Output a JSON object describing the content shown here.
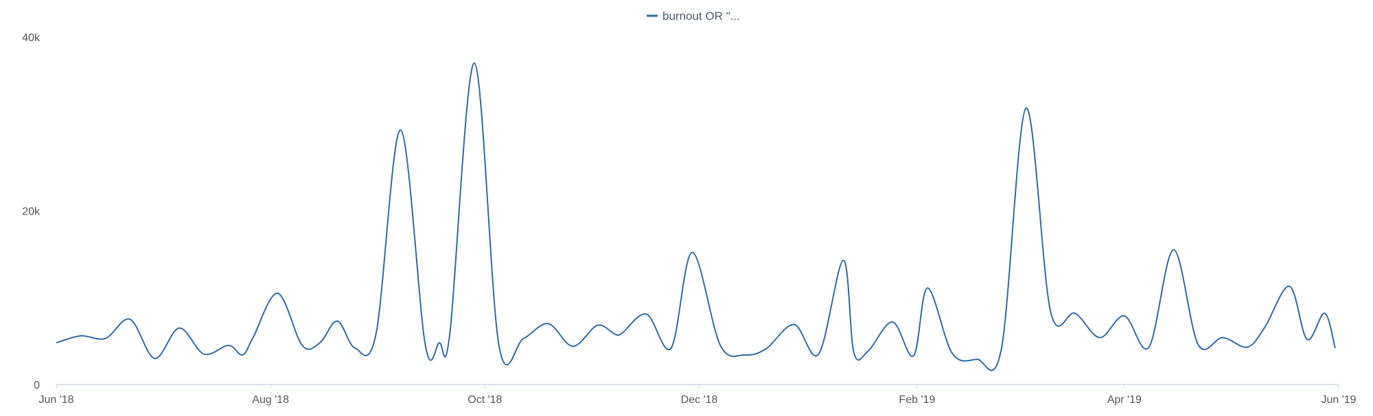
{
  "chart_data": {
    "type": "line",
    "legend": {
      "position": "top-center",
      "entries": [
        "burnout OR \"..."
      ]
    },
    "series": [
      {
        "name": "burnout OR \"...",
        "color": "#2e6aa8",
        "x": [
          "2018-06-01",
          "2018-06-08",
          "2018-06-15",
          "2018-06-22",
          "2018-06-29",
          "2018-07-06",
          "2018-07-13",
          "2018-07-20",
          "2018-07-24",
          "2018-07-27",
          "2018-08-03",
          "2018-08-10",
          "2018-08-15",
          "2018-08-20",
          "2018-08-25",
          "2018-08-31",
          "2018-09-07",
          "2018-09-14",
          "2018-09-18",
          "2018-09-21",
          "2018-09-28",
          "2018-10-05",
          "2018-10-12",
          "2018-10-19",
          "2018-10-26",
          "2018-11-02",
          "2018-11-07",
          "2018-11-09",
          "2018-11-16",
          "2018-11-23",
          "2018-11-29",
          "2018-12-07",
          "2018-12-14",
          "2018-12-20",
          "2018-12-28",
          "2019-01-04",
          "2019-01-11",
          "2019-01-14",
          "2019-01-18",
          "2019-01-25",
          "2019-01-31",
          "2019-02-04",
          "2019-02-11",
          "2019-02-18",
          "2019-02-25",
          "2019-03-04",
          "2019-03-11",
          "2019-03-18",
          "2019-03-25",
          "2019-04-01",
          "2019-04-08",
          "2019-04-15",
          "2019-04-22",
          "2019-04-29",
          "2019-05-06",
          "2019-05-11",
          "2019-05-18",
          "2019-05-23",
          "2019-05-28",
          "2019-05-31"
        ],
        "values": [
          4800,
          5600,
          5300,
          7500,
          3000,
          6500,
          3500,
          4500,
          3400,
          5400,
          10500,
          4500,
          4800,
          7300,
          4200,
          5800,
          29300,
          4600,
          4800,
          5800,
          37000,
          4500,
          5300,
          7000,
          4400,
          6800,
          5800,
          5900,
          8100,
          4200,
          15200,
          4500,
          3400,
          4100,
          6900,
          3500,
          14300,
          3700,
          3800,
          7200,
          3300,
          11100,
          3600,
          2900,
          4100,
          31800,
          8400,
          8200,
          5400,
          7900,
          4300,
          15500,
          4600,
          5400,
          4300,
          6600,
          11300,
          5200,
          8200,
          4200
        ]
      }
    ],
    "x_ticks": [
      "Jun '18",
      "Aug '18",
      "Oct '18",
      "Dec '18",
      "Feb '19",
      "Apr '19",
      "Jun '19"
    ],
    "y_ticks": [
      "0",
      "20k",
      "40k"
    ],
    "ylim": [
      0,
      40000
    ],
    "xlim": [
      "2018-06-01",
      "2019-06-01"
    ],
    "grid": false
  }
}
